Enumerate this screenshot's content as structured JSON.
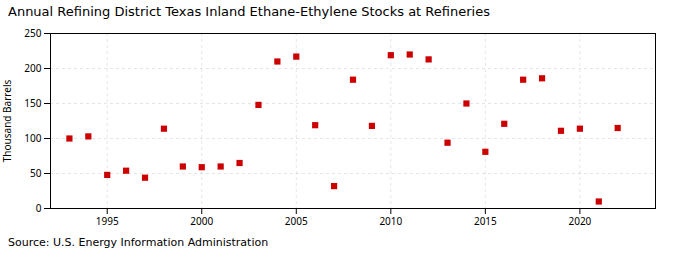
{
  "chart_data": {
    "type": "scatter",
    "title": "Annual Refining District Texas Inland Ethane-Ethylene Stocks at Refineries",
    "ylabel": "Thousand Barrels",
    "source": "Source: U.S. Energy Information Administration",
    "x": [
      1993,
      1994,
      1995,
      1996,
      1997,
      1998,
      1999,
      2000,
      2001,
      2002,
      2003,
      2004,
      2005,
      2006,
      2007,
      2008,
      2009,
      2010,
      2011,
      2012,
      2013,
      2014,
      2015,
      2016,
      2017,
      2018,
      2019,
      2020,
      2021,
      2022
    ],
    "values": [
      100,
      103,
      48,
      54,
      44,
      114,
      60,
      59,
      60,
      65,
      148,
      210,
      217,
      119,
      32,
      184,
      118,
      219,
      220,
      213,
      94,
      150,
      81,
      121,
      184,
      186,
      111,
      114,
      10,
      115
    ],
    "color": "#cc0000",
    "marker": "square",
    "xlim": [
      1992,
      2024
    ],
    "xticks": [
      1995,
      2000,
      2005,
      2010,
      2015,
      2020
    ],
    "ylim": [
      0,
      250
    ],
    "yticks": [
      0,
      50,
      100,
      150,
      200,
      250
    ],
    "grid": true
  }
}
